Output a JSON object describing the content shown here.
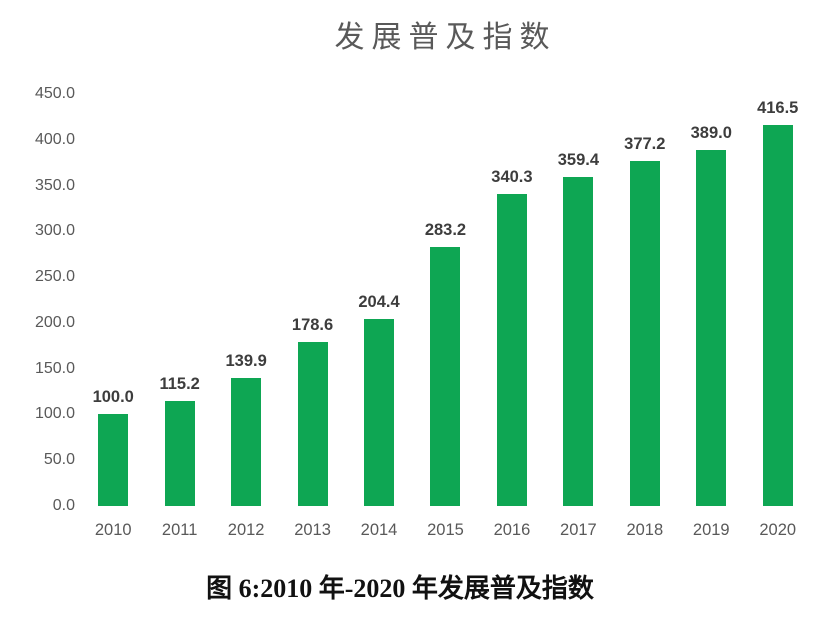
{
  "chart_data": {
    "type": "bar",
    "title": "发展普及指数",
    "categories": [
      "2010",
      "2011",
      "2012",
      "2013",
      "2014",
      "2015",
      "2016",
      "2017",
      "2018",
      "2019",
      "2020"
    ],
    "values": [
      100.0,
      115.2,
      139.9,
      178.6,
      204.4,
      283.2,
      340.3,
      359.4,
      377.2,
      389.0,
      416.5
    ],
    "value_labels": [
      "100.0",
      "115.2",
      "139.9",
      "178.6",
      "204.4",
      "283.2",
      "340.3",
      "359.4",
      "377.2",
      "389.0",
      "416.5"
    ],
    "y_ticks": [
      "0.0",
      "50.0",
      "100.0",
      "150.0",
      "200.0",
      "250.0",
      "300.0",
      "350.0",
      "400.0",
      "450.0"
    ],
    "ylim": [
      0,
      450
    ],
    "xlabel": "",
    "ylabel": "",
    "grid": false,
    "legend": "none",
    "bar_color": "#0ea653",
    "axis_label_color": "#595959",
    "value_label_color": "#3d3d3d",
    "title_color": "#595959"
  },
  "caption": "图 6:2010 年-2020 年发展普及指数"
}
